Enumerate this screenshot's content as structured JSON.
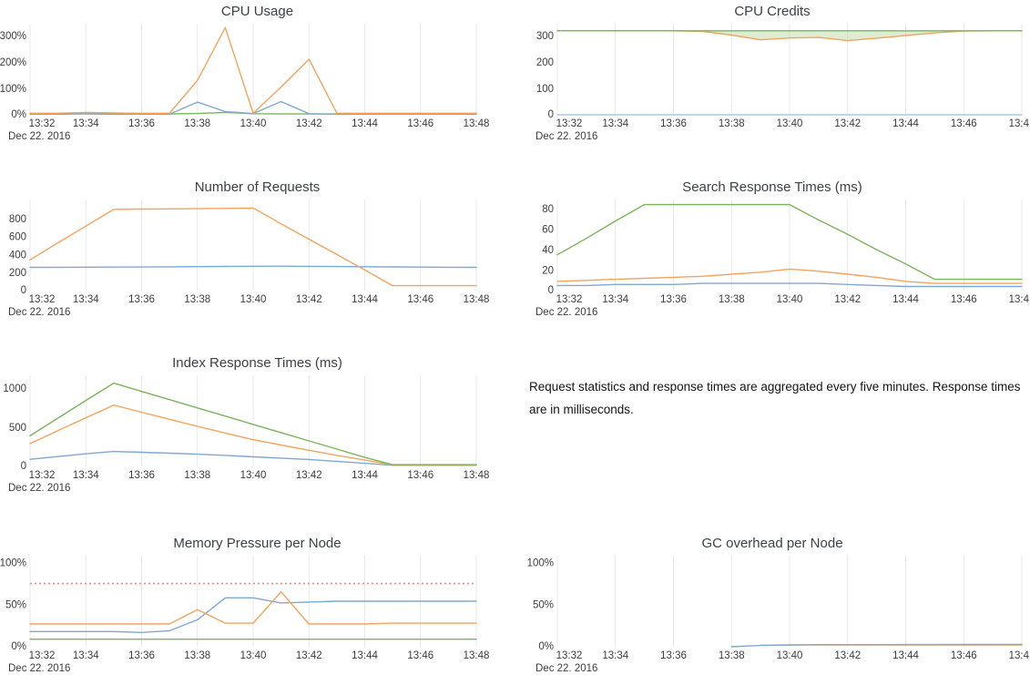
{
  "page": {
    "background": "#ffffff"
  },
  "date_label": "Dec 22. 2016",
  "x_tick_labels": [
    "13:32",
    "13:34",
    "13:36",
    "13:38",
    "13:40",
    "13:42",
    "13:44",
    "13:46",
    "13:48"
  ],
  "note": {
    "text": "Request statistics and response times are aggregated every five minutes. Response times are in milliseconds."
  },
  "palette": {
    "blue": "#7fa8d4",
    "orange": "#f5a35c",
    "green": "#7ab55c",
    "red_threshold": "#e78b8b",
    "grid": "#e8e8e8",
    "fill_green": "rgba(122,181,92,0.25)",
    "tick_text": "#3d3d3d",
    "title_text": "#3c4148"
  },
  "x": [
    "13:32",
    "13:33",
    "13:34",
    "13:35",
    "13:36",
    "13:37",
    "13:38",
    "13:39",
    "13:40",
    "13:41",
    "13:42",
    "13:43",
    "13:44",
    "13:45",
    "13:46",
    "13:47",
    "13:48"
  ],
  "chart_data": [
    {
      "type": "line",
      "title": "CPU Usage",
      "ylim": [
        0,
        345
      ],
      "yticks": [
        {
          "value": 0,
          "label": "0%"
        },
        {
          "value": 100,
          "label": "100%"
        },
        {
          "value": 200,
          "label": "200%"
        },
        {
          "value": 300,
          "label": "300%"
        }
      ],
      "series": [
        {
          "name": "green",
          "color": "#7ab55c",
          "values": [
            3,
            3,
            4,
            3,
            3,
            3,
            5,
            9,
            4,
            3,
            3,
            3,
            3,
            3,
            3,
            3,
            3
          ]
        },
        {
          "name": "blue",
          "color": "#7fa8d4",
          "values": [
            2,
            2,
            3,
            2,
            2,
            2,
            48,
            12,
            5,
            50,
            4,
            2,
            2,
            2,
            2,
            2,
            2
          ]
        },
        {
          "name": "orange",
          "color": "#f5a35c",
          "values": [
            6,
            6,
            9,
            7,
            6,
            6,
            130,
            330,
            6,
            105,
            210,
            6,
            6,
            6,
            6,
            6,
            6
          ]
        }
      ]
    },
    {
      "type": "line",
      "title": "CPU Credits",
      "ylim": [
        0,
        345
      ],
      "yticks": [
        {
          "value": 0,
          "label": "0"
        },
        {
          "value": 100,
          "label": "100"
        },
        {
          "value": 200,
          "label": "200"
        },
        {
          "value": 300,
          "label": "300"
        }
      ],
      "fill_between": {
        "upper": 2,
        "lower": 1,
        "color": "rgba(122,181,92,0.25)"
      },
      "series": [
        {
          "name": "blue",
          "color": "#a9c8e8",
          "values": [
            0,
            0,
            0,
            0,
            0,
            0,
            0,
            0,
            0,
            0,
            0,
            0,
            0,
            0,
            0,
            0,
            0
          ]
        },
        {
          "name": "orange",
          "color": "#f5a35c",
          "values": [
            318,
            318,
            318,
            318,
            318,
            316,
            302,
            284,
            291,
            293,
            281,
            290,
            300,
            310,
            317,
            318,
            318
          ]
        },
        {
          "name": "green",
          "color": "#7ab55c",
          "values": [
            318,
            318,
            318,
            318,
            318,
            318,
            318,
            318,
            318,
            318,
            318,
            318,
            318,
            318,
            318,
            318,
            318
          ]
        }
      ]
    },
    {
      "type": "line",
      "title": "Number of Requests",
      "ylim": [
        0,
        1010
      ],
      "yticks": [
        {
          "value": 0,
          "label": "0"
        },
        {
          "value": 200,
          "label": "200"
        },
        {
          "value": 400,
          "label": "400"
        },
        {
          "value": 600,
          "label": "600"
        },
        {
          "value": 800,
          "label": "800"
        }
      ],
      "series": [
        {
          "name": "blue",
          "color": "#7fa8d4",
          "values": [
            258,
            259,
            260,
            261,
            262,
            264,
            266,
            268,
            270,
            271,
            269,
            267,
            265,
            263,
            261,
            259,
            258
          ]
        },
        {
          "name": "orange",
          "color": "#f5a35c",
          "values": [
            340,
            530,
            715,
            900,
            904,
            906,
            908,
            911,
            915,
            740,
            570,
            400,
            230,
            55,
            55,
            55,
            55
          ]
        }
      ]
    },
    {
      "type": "line",
      "title": "Search Response Times (ms)",
      "ylim": [
        0,
        89
      ],
      "yticks": [
        {
          "value": 0,
          "label": "0"
        },
        {
          "value": 20,
          "label": "20"
        },
        {
          "value": 40,
          "label": "40"
        },
        {
          "value": 60,
          "label": "60"
        },
        {
          "value": 80,
          "label": "80"
        }
      ],
      "series": [
        {
          "name": "blue",
          "color": "#7fa8d4",
          "values": [
            5,
            5,
            6,
            6,
            6,
            7,
            7,
            7,
            7,
            7,
            6,
            5,
            4,
            4,
            4,
            4,
            4
          ]
        },
        {
          "name": "orange",
          "color": "#f5a35c",
          "values": [
            9,
            10,
            11,
            12,
            13,
            14,
            16,
            18,
            21,
            19,
            16,
            13,
            9,
            7,
            7,
            7,
            7
          ]
        },
        {
          "name": "green",
          "color": "#7ab55c",
          "values": [
            35,
            51,
            68,
            84,
            84,
            84,
            84,
            84,
            84,
            69,
            55,
            40,
            26,
            11,
            11,
            11,
            11
          ]
        }
      ]
    },
    {
      "type": "line",
      "title": "Index Response Times (ms)",
      "ylim": [
        0,
        1160
      ],
      "yticks": [
        {
          "value": 0,
          "label": "0"
        },
        {
          "value": 500,
          "label": "500"
        },
        {
          "value": 1000,
          "label": "1000"
        }
      ],
      "series": [
        {
          "name": "blue",
          "color": "#7fa8d4",
          "values": [
            90,
            125,
            160,
            190,
            180,
            168,
            155,
            140,
            122,
            105,
            88,
            65,
            40,
            14,
            14,
            14,
            14
          ]
        },
        {
          "name": "orange",
          "color": "#f5a35c",
          "values": [
            290,
            455,
            620,
            780,
            690,
            600,
            510,
            425,
            340,
            272,
            205,
            140,
            80,
            20,
            20,
            20,
            20
          ]
        },
        {
          "name": "green",
          "color": "#7ab55c",
          "values": [
            390,
            615,
            840,
            1060,
            955,
            850,
            745,
            640,
            535,
            430,
            325,
            220,
            115,
            22,
            22,
            22,
            22
          ]
        }
      ]
    },
    {
      "type": "line",
      "title": "Memory Pressure per Node",
      "ylim": [
        0,
        108
      ],
      "yticks": [
        {
          "value": 0,
          "label": "0%"
        },
        {
          "value": 50,
          "label": "50%"
        },
        {
          "value": 100,
          "label": "100%"
        }
      ],
      "threshold": {
        "value": 75,
        "color": "#e78b8b"
      },
      "series": [
        {
          "name": "green",
          "color": "#7ab55c",
          "values": [
            9,
            9,
            9,
            9,
            9,
            9,
            9,
            9,
            9,
            9,
            9,
            9,
            9,
            9,
            9,
            9,
            9
          ]
        },
        {
          "name": "blue",
          "color": "#7fa8d4",
          "values": [
            18,
            18,
            18,
            18,
            17,
            19,
            32,
            58,
            58,
            52,
            53,
            54,
            54,
            54,
            54,
            54,
            54
          ]
        },
        {
          "name": "orange",
          "color": "#f5a35c",
          "values": [
            27,
            27,
            27,
            27,
            27,
            27,
            44,
            28,
            28,
            65,
            27,
            27,
            27,
            28,
            28,
            28,
            28
          ]
        }
      ]
    },
    {
      "type": "line",
      "title": "GC overhead per Node",
      "ylim": [
        0,
        108
      ],
      "yticks": [
        {
          "value": 0,
          "label": "0%"
        },
        {
          "value": 50,
          "label": "50%"
        },
        {
          "value": 100,
          "label": "100%"
        }
      ],
      "series": [
        {
          "name": "orange",
          "color": "#f5a35c",
          "values": [
            null,
            null,
            null,
            null,
            null,
            null,
            null,
            1.8,
            2,
            2,
            2.1,
            2.1,
            2.1,
            2.1,
            2.1,
            2.1,
            2.0
          ]
        },
        {
          "name": "blue",
          "color": "#7fa8d4",
          "values": [
            null,
            null,
            null,
            null,
            null,
            null,
            0,
            1.5,
            2.2,
            2.5,
            2.5,
            2.5,
            2.6,
            2.6,
            2.7,
            2.7,
            2.8
          ]
        }
      ]
    }
  ]
}
